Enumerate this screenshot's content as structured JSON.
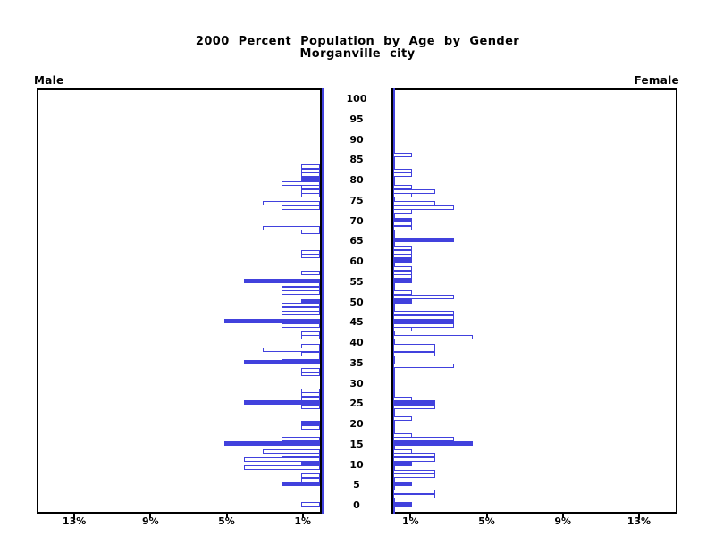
{
  "title": {
    "line1": "2000 Percent Population by Age by Gender",
    "line2": "Morganville city"
  },
  "side_labels": {
    "left": "Male",
    "right": "Female"
  },
  "colors": {
    "bar_blue": "#4141dd",
    "bar_fill_outline": "#ffffff",
    "axis_black": "#000000"
  },
  "chart_data": {
    "type": "bar",
    "subtype": "population-pyramid",
    "title": "2000 Percent Population by Age by Gender",
    "subtitle": "Morganville city",
    "age_bin_years": 1,
    "age_axis": {
      "min": 0,
      "max": 100,
      "label_step": 5,
      "tick_labels": [
        "0",
        "5",
        "10",
        "15",
        "20",
        "25",
        "30",
        "35",
        "40",
        "45",
        "50",
        "55",
        "60",
        "65",
        "70",
        "75",
        "80",
        "85",
        "90",
        "95",
        "100"
      ]
    },
    "pct_axis": {
      "unit": "%",
      "max": 15,
      "ticks": [
        1,
        5,
        9,
        13
      ],
      "tick_labels": [
        "1%",
        "5%",
        "9%",
        "13%"
      ]
    },
    "legend_note": "solid=1 bars are filled blue (ages at 5-year multiples); solid=0 bars are white with blue outline",
    "series": [
      {
        "name": "Male",
        "bars": [
          [
            83,
            1,
            0
          ],
          [
            82,
            1,
            0
          ],
          [
            81,
            1,
            0
          ],
          [
            80,
            1,
            1
          ],
          [
            79,
            2,
            0
          ],
          [
            78,
            1,
            0
          ],
          [
            77,
            1,
            0
          ],
          [
            76,
            1,
            0
          ],
          [
            74,
            3,
            0
          ],
          [
            73,
            2,
            0
          ],
          [
            68,
            3,
            0
          ],
          [
            67,
            1,
            0
          ],
          [
            62,
            1,
            0
          ],
          [
            61,
            1,
            0
          ],
          [
            57,
            1,
            0
          ],
          [
            55,
            4,
            1
          ],
          [
            54,
            2,
            0
          ],
          [
            53,
            2,
            0
          ],
          [
            52,
            2,
            0
          ],
          [
            50,
            1,
            1
          ],
          [
            49,
            2,
            0
          ],
          [
            48,
            2,
            0
          ],
          [
            47,
            2,
            0
          ],
          [
            45,
            5,
            1
          ],
          [
            44,
            2,
            0
          ],
          [
            42,
            1,
            0
          ],
          [
            41,
            1,
            0
          ],
          [
            39,
            1,
            0
          ],
          [
            38,
            3,
            0
          ],
          [
            37,
            1,
            0
          ],
          [
            36,
            2,
            0
          ],
          [
            35,
            4,
            1
          ],
          [
            33,
            1,
            0
          ],
          [
            32,
            1,
            0
          ],
          [
            28,
            1,
            0
          ],
          [
            27,
            1,
            0
          ],
          [
            26,
            1,
            0
          ],
          [
            25,
            4,
            1
          ],
          [
            24,
            1,
            0
          ],
          [
            20,
            1,
            1
          ],
          [
            19,
            1,
            0
          ],
          [
            16,
            2,
            0
          ],
          [
            15,
            5,
            1
          ],
          [
            13,
            3,
            0
          ],
          [
            12,
            2,
            0
          ],
          [
            11,
            4,
            0
          ],
          [
            10,
            1,
            1
          ],
          [
            9,
            4,
            0
          ],
          [
            7,
            1,
            0
          ],
          [
            6,
            1,
            0
          ],
          [
            5,
            2,
            1
          ],
          [
            0,
            1,
            0
          ]
        ]
      },
      {
        "name": "Female",
        "bars": [
          [
            86,
            1,
            0
          ],
          [
            82,
            1,
            0
          ],
          [
            81,
            1,
            0
          ],
          [
            78,
            1,
            0
          ],
          [
            77,
            2.2,
            0
          ],
          [
            76,
            1,
            0
          ],
          [
            74,
            2.2,
            0
          ],
          [
            73,
            3.2,
            0
          ],
          [
            72,
            1,
            0
          ],
          [
            70,
            1,
            1
          ],
          [
            69,
            1,
            0
          ],
          [
            68,
            1,
            0
          ],
          [
            65,
            3.2,
            1
          ],
          [
            63,
            1,
            0
          ],
          [
            62,
            1,
            0
          ],
          [
            61,
            1,
            0
          ],
          [
            60,
            1,
            1
          ],
          [
            58,
            1,
            0
          ],
          [
            57,
            1,
            0
          ],
          [
            56,
            1,
            0
          ],
          [
            55,
            1,
            1
          ],
          [
            52,
            1,
            0
          ],
          [
            51,
            3.2,
            0
          ],
          [
            50,
            1,
            1
          ],
          [
            47,
            3.2,
            0
          ],
          [
            46,
            3.2,
            0
          ],
          [
            45,
            3.2,
            1
          ],
          [
            44,
            3.2,
            0
          ],
          [
            43,
            1,
            0
          ],
          [
            41,
            4.2,
            0
          ],
          [
            39,
            2.2,
            0
          ],
          [
            38,
            2.2,
            0
          ],
          [
            37,
            2.2,
            0
          ],
          [
            34,
            3.2,
            0
          ],
          [
            26,
            1,
            0
          ],
          [
            25,
            2.2,
            1
          ],
          [
            24,
            2.2,
            0
          ],
          [
            21,
            1,
            0
          ],
          [
            17,
            1,
            0
          ],
          [
            16,
            3.2,
            0
          ],
          [
            15,
            4.2,
            1
          ],
          [
            13,
            1,
            0
          ],
          [
            12,
            2.2,
            0
          ],
          [
            11,
            2.2,
            0
          ],
          [
            10,
            1,
            1
          ],
          [
            8,
            2.2,
            0
          ],
          [
            7,
            2.2,
            0
          ],
          [
            5,
            1,
            1
          ],
          [
            3,
            2.2,
            0
          ],
          [
            2,
            2.2,
            0
          ],
          [
            0,
            1,
            1
          ]
        ]
      }
    ]
  }
}
